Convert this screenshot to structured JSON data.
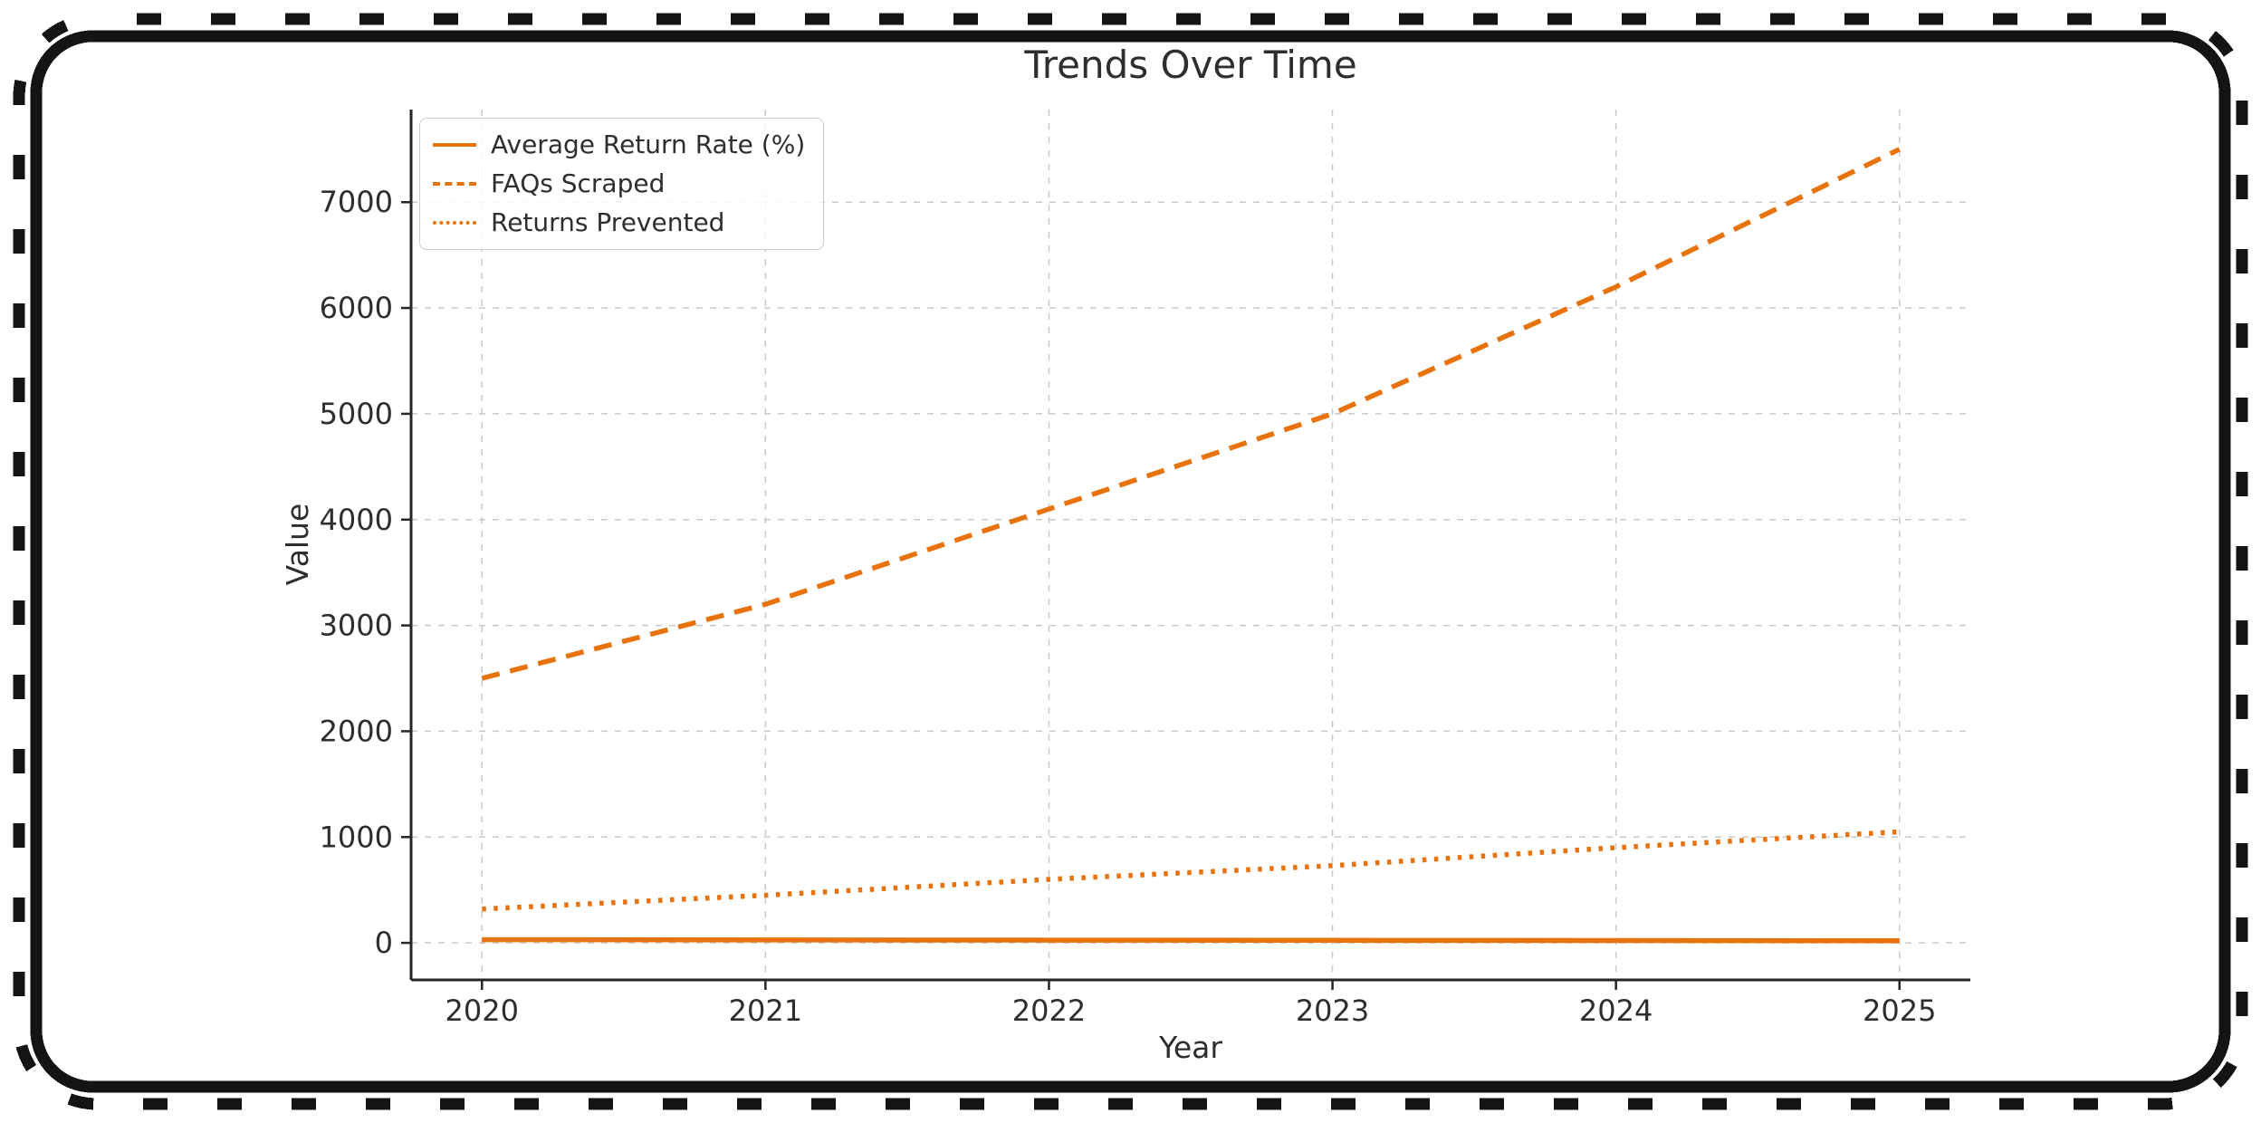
{
  "figure": {
    "title": "Trends Over Time"
  },
  "chart_data": {
    "type": "line",
    "title": "Trends Over Time",
    "xlabel": "Year",
    "ylabel": "Value",
    "x": [
      2020,
      2021,
      2022,
      2023,
      2024,
      2025
    ],
    "x_ticks": [
      "2020",
      "2021",
      "2022",
      "2023",
      "2024",
      "2025"
    ],
    "y_ticks": [
      0,
      1000,
      2000,
      3000,
      4000,
      5000,
      6000,
      7000
    ],
    "xlim": [
      2019.75,
      2025.25
    ],
    "ylim": [
      -350,
      7875
    ],
    "grid": true,
    "legend_position": "upper left",
    "series": [
      {
        "name": "Average Return Rate (%)",
        "style": "solid",
        "color": "#e8730d",
        "values": [
          30,
          28,
          26,
          24,
          22,
          20
        ]
      },
      {
        "name": "FAQs Scraped",
        "style": "dashed",
        "color": "#e8730d",
        "values": [
          2500,
          3200,
          4100,
          5000,
          6200,
          7500
        ]
      },
      {
        "name": "Returns Prevented",
        "style": "dotted",
        "color": "#e8730d",
        "values": [
          320,
          450,
          600,
          730,
          900,
          1050
        ]
      }
    ]
  },
  "colors": {
    "accent": "#e8730d",
    "grid": "#c9c9c9",
    "text": "#2e2e2e",
    "spine": "#262626",
    "frame": "#141414",
    "legend_border": "#cccccc"
  }
}
